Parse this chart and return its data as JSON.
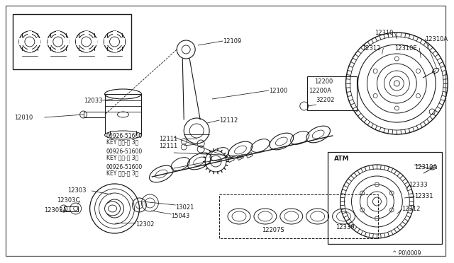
{
  "bg_color": "#ffffff",
  "line_color": "#1a1a1a",
  "text_color": "#1a1a1a",
  "diagram_ref": "^ P0\\0009",
  "font_size": 6.0,
  "border": [
    8,
    8,
    630,
    362
  ]
}
